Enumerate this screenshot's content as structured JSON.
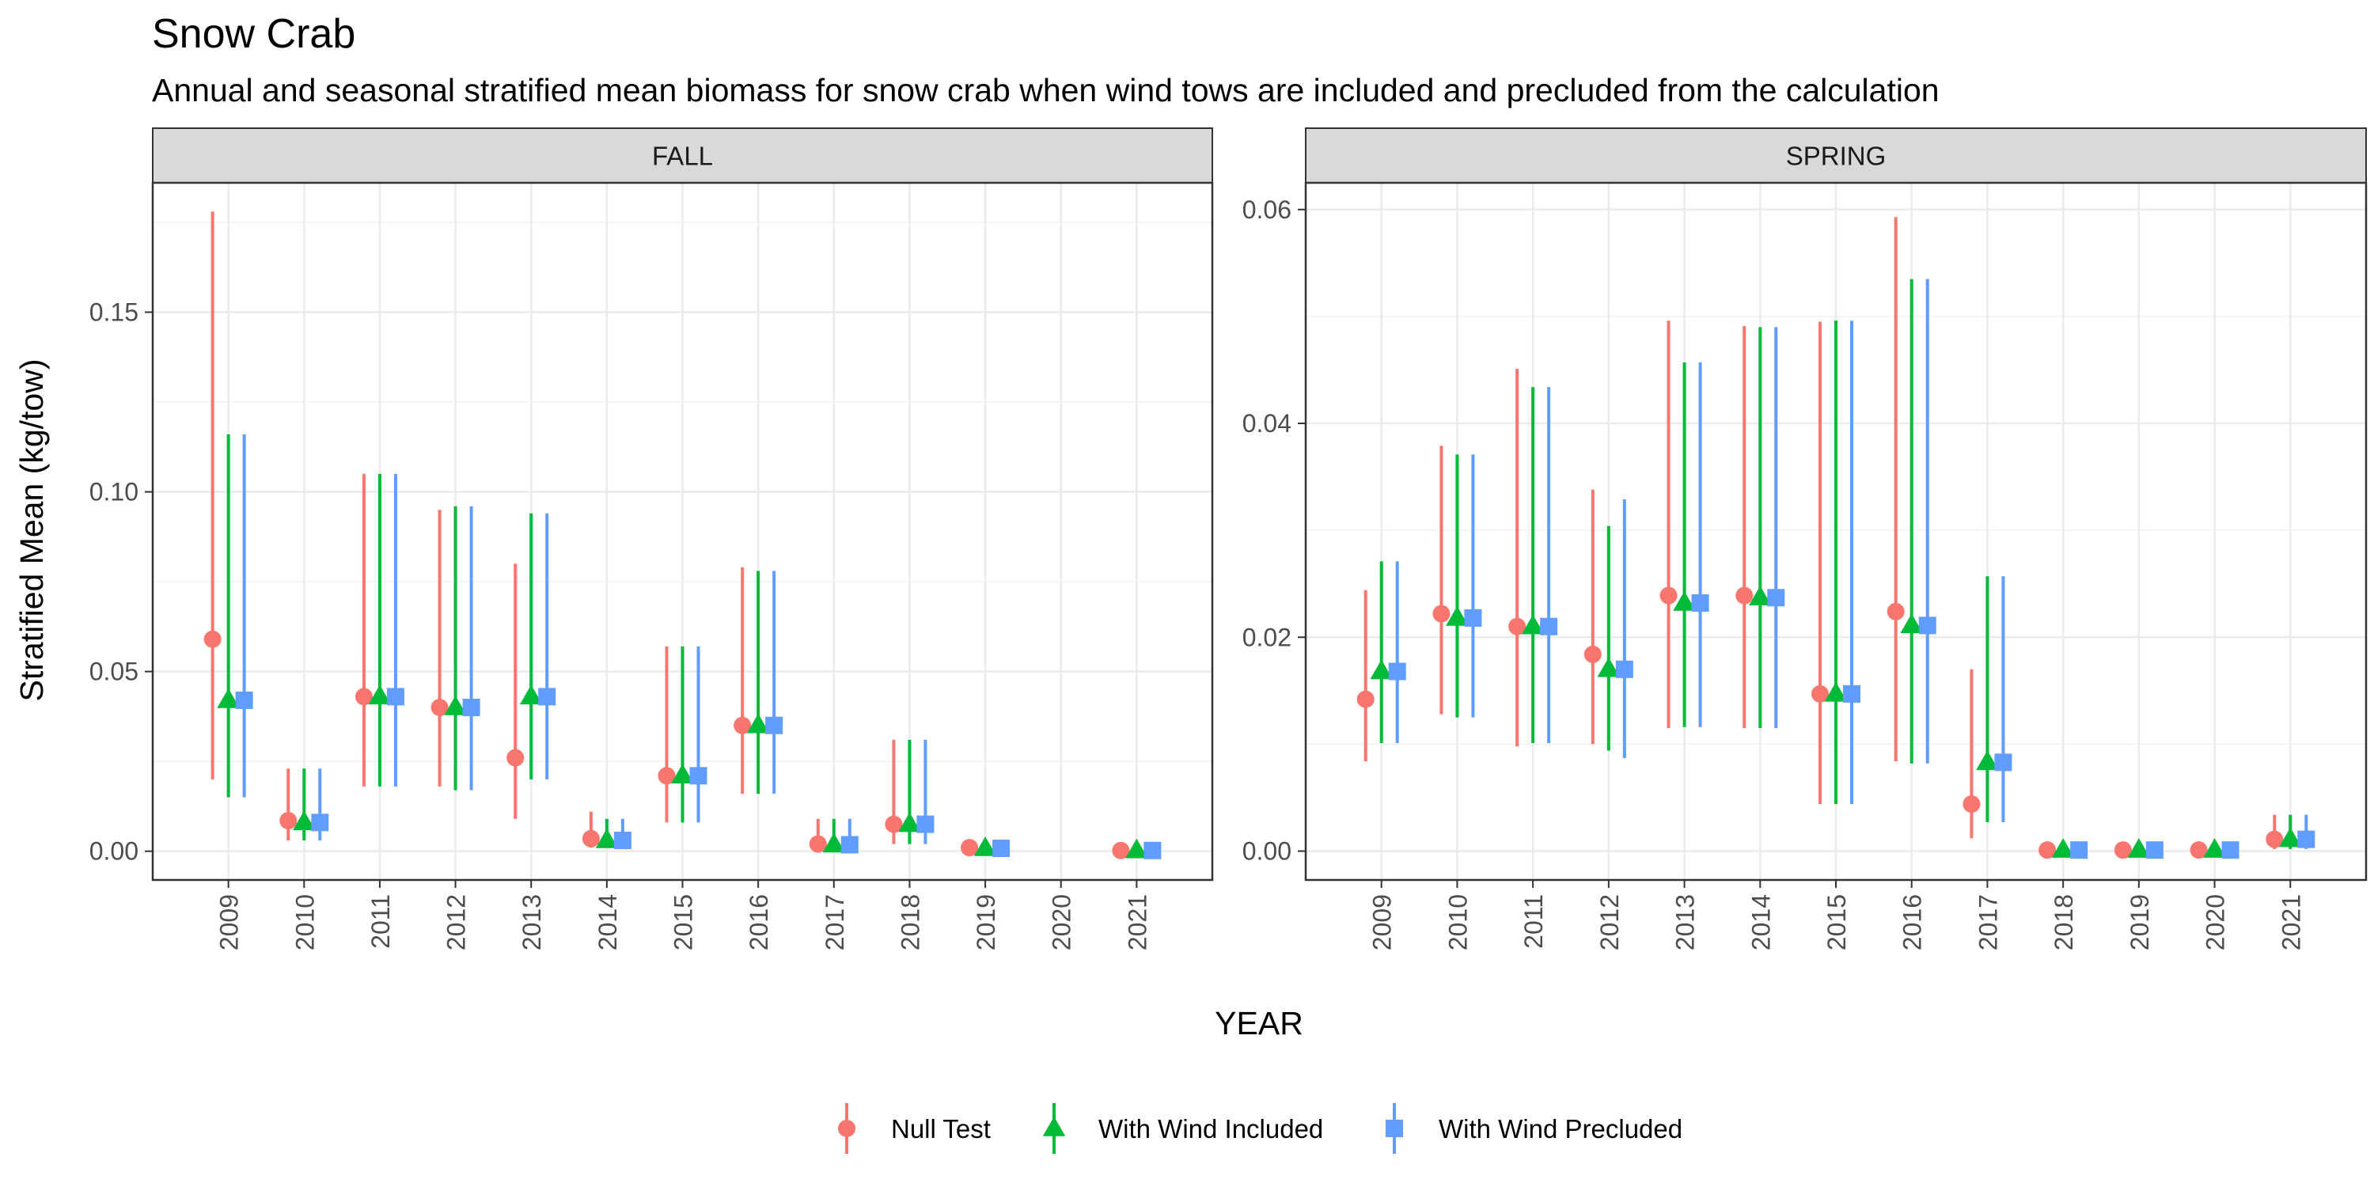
{
  "title": "Snow Crab",
  "subtitle": "Annual and seasonal stratified mean biomass for snow crab when wind tows are included and precluded from the calculation",
  "chart_data": {
    "type": "scatter",
    "subtype": "point-range",
    "xlabel": "YEAR",
    "ylabel": "Stratified Mean (kg/tow)",
    "legend_position": "bottom",
    "grid": true,
    "x": [
      "2009",
      "2010",
      "2011",
      "2012",
      "2013",
      "2014",
      "2015",
      "2016",
      "2017",
      "2018",
      "2019",
      "2020",
      "2021"
    ],
    "series_styles": [
      {
        "name": "Null Test",
        "color": "#F8766D",
        "shape": "circle"
      },
      {
        "name": "With Wind Included",
        "color": "#00BA38",
        "shape": "triangle"
      },
      {
        "name": "With Wind Precluded",
        "color": "#619CFF",
        "shape": "square"
      }
    ],
    "panels": [
      {
        "label": "FALL",
        "ylim": [
          -0.008,
          0.186
        ],
        "yticks": [
          0.0,
          0.05,
          0.1,
          0.15
        ],
        "ytick_labels": [
          "0.00",
          "0.05",
          "0.10",
          "0.15"
        ],
        "series": [
          {
            "name": "Null Test",
            "values": [
              0.059,
              0.0085,
              0.043,
              0.04,
              0.026,
              0.0035,
              0.021,
              0.035,
              0.002,
              0.0075,
              0.001,
              null,
              0.0002
            ],
            "lower": [
              0.02,
              0.003,
              0.018,
              0.018,
              0.009,
              0.001,
              0.008,
              0.016,
              0.0005,
              0.002,
              0.0002,
              null,
              0.0001
            ],
            "upper": [
              0.178,
              0.023,
              0.105,
              0.095,
              0.08,
              0.011,
              0.057,
              0.079,
              0.009,
              0.031,
              0.002,
              null,
              0.0005
            ]
          },
          {
            "name": "With Wind Included",
            "values": [
              0.042,
              0.008,
              0.043,
              0.04,
              0.043,
              0.003,
              0.021,
              0.035,
              0.0018,
              0.0075,
              0.0008,
              null,
              0.0002
            ],
            "lower": [
              0.015,
              0.003,
              0.018,
              0.017,
              0.02,
              0.001,
              0.008,
              0.016,
              0.0005,
              0.002,
              0.0002,
              null,
              0.0001
            ],
            "upper": [
              0.116,
              0.023,
              0.105,
              0.096,
              0.094,
              0.009,
              0.057,
              0.078,
              0.009,
              0.031,
              0.002,
              null,
              0.0005
            ]
          },
          {
            "name": "With Wind Precluded",
            "values": [
              0.042,
              0.008,
              0.043,
              0.04,
              0.043,
              0.003,
              0.021,
              0.035,
              0.0018,
              0.0075,
              0.0008,
              null,
              0.0002
            ],
            "lower": [
              0.015,
              0.003,
              0.018,
              0.017,
              0.02,
              0.001,
              0.008,
              0.016,
              0.0005,
              0.002,
              0.0002,
              null,
              0.0001
            ],
            "upper": [
              0.116,
              0.023,
              0.105,
              0.096,
              0.094,
              0.009,
              0.057,
              0.078,
              0.009,
              0.031,
              0.002,
              null,
              0.0005
            ]
          }
        ]
      },
      {
        "label": "SPRING",
        "ylim": [
          -0.0027,
          0.0625
        ],
        "yticks": [
          0.0,
          0.02,
          0.04,
          0.06
        ],
        "ytick_labels": [
          "0.00",
          "0.02",
          "0.04",
          "0.06"
        ],
        "series": [
          {
            "name": "Null Test",
            "values": [
              0.0142,
              0.0222,
              0.021,
              0.0184,
              0.0239,
              0.0239,
              0.0147,
              0.0224,
              0.0044,
              0.0001,
              0.0001,
              0.0001,
              0.0011
            ],
            "lower": [
              0.0084,
              0.0128,
              0.0098,
              0.01,
              0.0115,
              0.0115,
              0.0044,
              0.0084,
              0.0012,
              3e-05,
              3e-05,
              3e-05,
              0.0002
            ],
            "upper": [
              0.0244,
              0.0379,
              0.0451,
              0.0338,
              0.0496,
              0.0491,
              0.0495,
              0.0593,
              0.017,
              0.0004,
              0.0004,
              0.0003,
              0.0034
            ]
          },
          {
            "name": "With Wind Included",
            "values": [
              0.0168,
              0.0218,
              0.021,
              0.017,
              0.0232,
              0.0237,
              0.0147,
              0.0211,
              0.0083,
              0.0001,
              0.0001,
              0.0001,
              0.0011
            ],
            "lower": [
              0.0101,
              0.0125,
              0.0101,
              0.0094,
              0.0116,
              0.0115,
              0.0044,
              0.0082,
              0.0027,
              3e-05,
              3e-05,
              3e-05,
              0.0002
            ],
            "upper": [
              0.0271,
              0.0371,
              0.0434,
              0.0304,
              0.0457,
              0.049,
              0.0496,
              0.0535,
              0.0257,
              0.0004,
              0.0004,
              0.0003,
              0.0034
            ]
          },
          {
            "name": "With Wind Precluded",
            "values": [
              0.0168,
              0.0218,
              0.021,
              0.017,
              0.0232,
              0.0237,
              0.0147,
              0.0211,
              0.0083,
              0.0001,
              0.0001,
              0.0001,
              0.0011
            ],
            "lower": [
              0.0101,
              0.0125,
              0.0101,
              0.0087,
              0.0116,
              0.0115,
              0.0044,
              0.0082,
              0.0027,
              3e-05,
              3e-05,
              3e-05,
              0.0002
            ],
            "upper": [
              0.0271,
              0.0371,
              0.0434,
              0.0329,
              0.0457,
              0.049,
              0.0496,
              0.0535,
              0.0257,
              0.0004,
              0.0004,
              0.0003,
              0.0034
            ]
          }
        ]
      }
    ]
  }
}
